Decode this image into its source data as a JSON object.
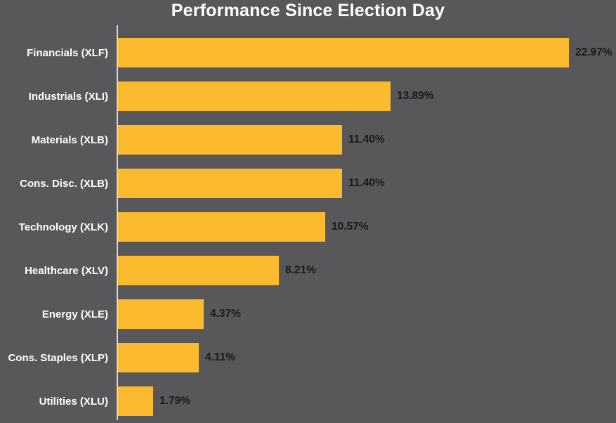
{
  "chart_data": {
    "type": "bar",
    "orientation": "horizontal",
    "title": "Performance Since Election Day",
    "categories": [
      "Financials (XLF)",
      "Industrials (XLI)",
      "Materials (XLB)",
      "Cons. Disc. (XLB)",
      "Technology (XLK)",
      "Healthcare (XLV)",
      "Energy (XLE)",
      "Cons. Staples (XLP)",
      "Utilities (XLU)"
    ],
    "values": [
      22.97,
      13.89,
      11.4,
      11.4,
      10.57,
      8.21,
      4.37,
      4.11,
      1.79
    ],
    "value_labels": [
      "22.97%",
      "13.89%",
      "11.40%",
      "11.40%",
      "10.57%",
      "8.21%",
      "4.37%",
      "4.11%",
      "1.79%"
    ],
    "xlabel": "",
    "ylabel": "",
    "xlim": [
      0,
      25.4
    ],
    "grid": false,
    "legend": false,
    "colors": {
      "background": "#58585A",
      "bar": "#FCBB2F",
      "title_text": "#FFFFFF",
      "category_label_text": "#FFFFFF",
      "value_label_text": "#1A1A1A",
      "axis_line": "#D8D8D8"
    }
  }
}
